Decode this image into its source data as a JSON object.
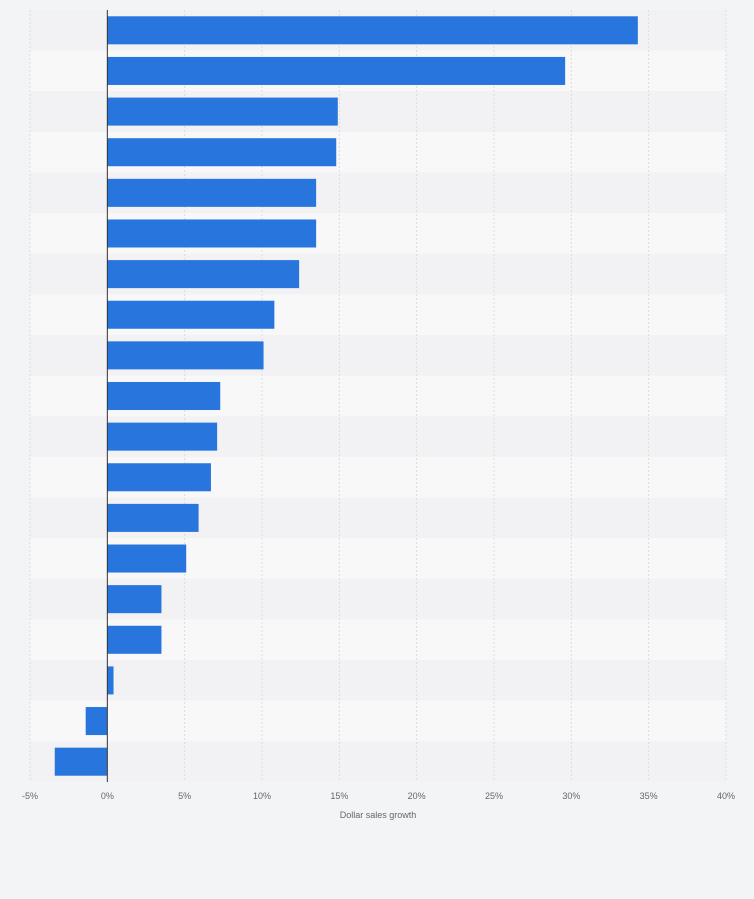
{
  "chart_data": {
    "type": "bar",
    "orientation": "horizontal",
    "xlabel": "Dollar sales growth",
    "ylabel": "",
    "xlim": [
      -5,
      40
    ],
    "xticks": [
      -5,
      0,
      5,
      10,
      15,
      20,
      25,
      30,
      35,
      40
    ],
    "tick_suffix": "%",
    "grid": true,
    "series": [
      {
        "values": [
          34.3,
          29.6,
          14.9,
          14.8,
          13.5,
          13.5,
          12.4,
          10.8,
          10.1,
          7.3,
          7.1,
          6.7,
          5.9,
          5.1,
          3.5,
          3.5,
          0.4,
          -1.4,
          -3.4
        ]
      }
    ],
    "colors": {
      "bar": "#2876dd",
      "band_light": "#f8f8f9",
      "band_dark": "#f2f2f4",
      "grid": "#dcdcdc",
      "axis": "#333333",
      "background": "#f3f4f6"
    }
  }
}
